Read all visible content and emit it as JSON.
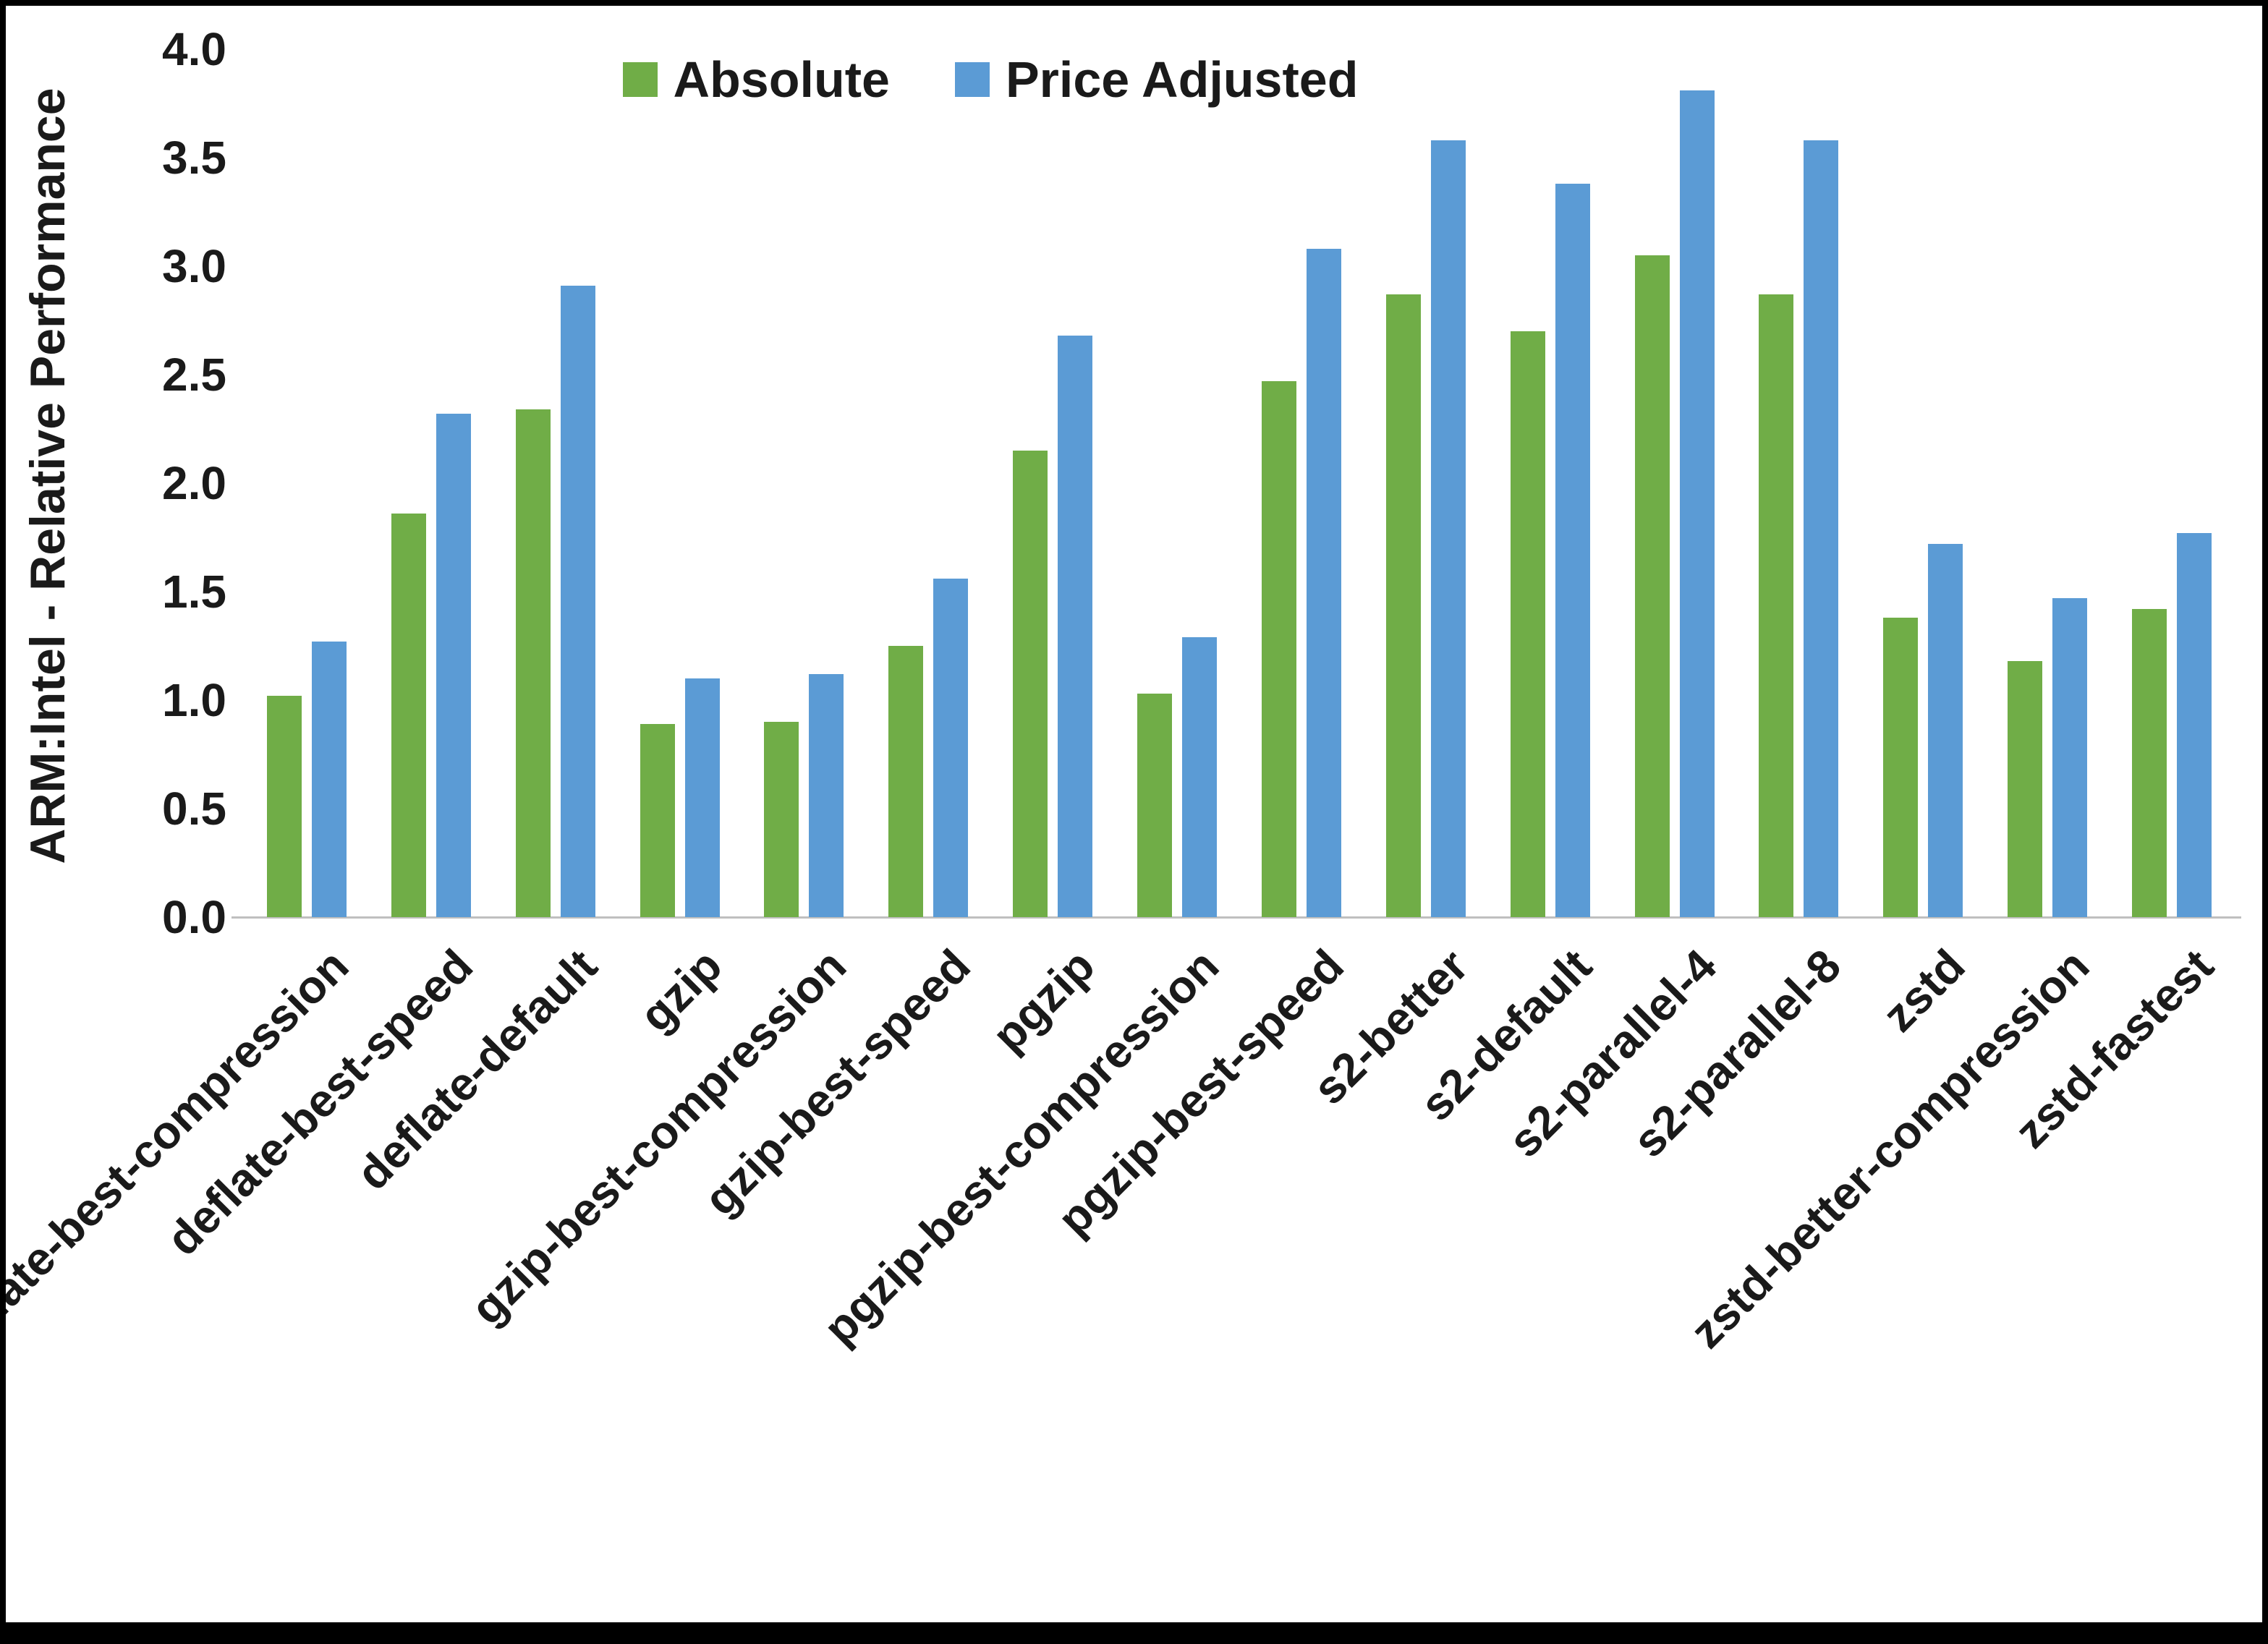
{
  "chart_data": {
    "type": "bar",
    "title": "",
    "xlabel": "",
    "ylabel": "ARM:Intel - Relative Performance",
    "ylim": [
      0.0,
      4.0
    ],
    "ytick_step": 0.5,
    "yticks": [
      "0.0",
      "0.5",
      "1.0",
      "1.5",
      "2.0",
      "2.5",
      "3.0",
      "3.5",
      "4.0"
    ],
    "grid": false,
    "legend_position": "top",
    "categories": [
      "deflate-best-compression",
      "deflate-best-speed",
      "deflate-default",
      "gzip",
      "gzip-best-compression",
      "gzip-best-speed",
      "pgzip",
      "pgzip-best-compression",
      "pgzip-best-speed",
      "s2-better",
      "s2-default",
      "s2-parallel-4",
      "s2-parallel-8",
      "zstd",
      "zstd-better-compression",
      "zstd-fastest"
    ],
    "series": [
      {
        "name": "Absolute",
        "color": "#70AD47",
        "values": [
          1.02,
          1.86,
          2.34,
          0.89,
          0.9,
          1.25,
          2.15,
          1.03,
          2.47,
          2.87,
          2.7,
          3.05,
          2.87,
          1.38,
          1.18,
          1.42
        ]
      },
      {
        "name": "Price Adjusted",
        "color": "#5B9BD5",
        "values": [
          1.27,
          2.32,
          2.91,
          1.1,
          1.12,
          1.56,
          2.68,
          1.29,
          3.08,
          3.58,
          3.38,
          3.81,
          3.58,
          1.72,
          1.47,
          1.77
        ]
      }
    ]
  },
  "colors": {
    "background": "#ffffff",
    "frame": "#000000",
    "axis_line": "#bfbfbf",
    "text": "#1a1a1a"
  }
}
